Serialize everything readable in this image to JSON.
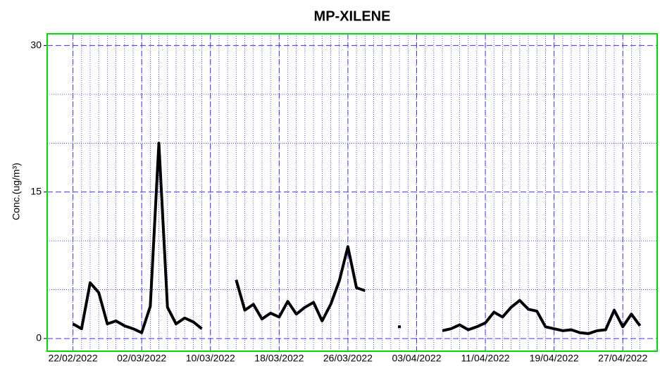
{
  "chart_data": {
    "type": "line",
    "title": "MP-XILENE",
    "y_label": "Conc.(ug/m³)",
    "x": [
      "22/02/2022",
      "23/02/2022",
      "24/02/2022",
      "25/02/2022",
      "26/02/2022",
      "27/02/2022",
      "28/02/2022",
      "01/03/2022",
      "02/03/2022",
      "03/03/2022",
      "04/03/2022",
      "05/03/2022",
      "06/03/2022",
      "07/03/2022",
      "08/03/2022",
      "09/03/2022",
      "10/03/2022",
      "11/03/2022",
      "12/03/2022",
      "13/03/2022",
      "14/03/2022",
      "15/03/2022",
      "16/03/2022",
      "17/03/2022",
      "18/03/2022",
      "19/03/2022",
      "20/03/2022",
      "21/03/2022",
      "22/03/2022",
      "23/03/2022",
      "24/03/2022",
      "25/03/2022",
      "26/03/2022",
      "27/03/2022",
      "28/03/2022",
      "29/03/2022",
      "30/03/2022",
      "31/03/2022",
      "01/04/2022",
      "02/04/2022",
      "03/04/2022",
      "04/04/2022",
      "05/04/2022",
      "06/04/2022",
      "07/04/2022",
      "08/04/2022",
      "09/04/2022",
      "10/04/2022",
      "11/04/2022",
      "12/04/2022",
      "13/04/2022",
      "14/04/2022",
      "15/04/2022",
      "16/04/2022",
      "17/04/2022",
      "18/04/2022",
      "19/04/2022",
      "20/04/2022",
      "21/04/2022",
      "22/04/2022",
      "23/04/2022",
      "24/04/2022",
      "25/04/2022",
      "26/04/2022",
      "27/04/2022",
      "28/04/2022",
      "29/04/2022"
    ],
    "series": [
      {
        "name": "MP-XILENE",
        "color": "#000000",
        "values": [
          1.5,
          1.0,
          5.7,
          4.7,
          1.5,
          1.8,
          1.3,
          1.0,
          0.6,
          3.3,
          20.0,
          3.2,
          1.5,
          2.1,
          1.7,
          1.0,
          null,
          null,
          null,
          6.0,
          2.9,
          3.5,
          2.0,
          2.6,
          2.2,
          3.8,
          2.5,
          3.2,
          3.7,
          1.8,
          3.5,
          5.9,
          9.4,
          5.2,
          4.9,
          null,
          null,
          null,
          1.2,
          null,
          null,
          null,
          null,
          0.8,
          1.0,
          1.4,
          0.9,
          1.2,
          1.6,
          2.7,
          2.2,
          3.2,
          3.9,
          3.0,
          2.8,
          1.2,
          1.0,
          0.8,
          0.9,
          0.6,
          0.5,
          0.8,
          0.9,
          2.9,
          1.2,
          2.5,
          1.3
        ]
      }
    ],
    "xlim": [
      "19/02/2022",
      "01/05/2022"
    ],
    "xticks": [
      "22/02/2022",
      "02/03/2022",
      "10/03/2022",
      "18/03/2022",
      "26/03/2022",
      "03/04/2022",
      "11/04/2022",
      "19/04/2022",
      "27/04/2022"
    ],
    "ylim": [
      -1.3,
      31.2
    ],
    "yticks": [
      0,
      15,
      30
    ],
    "yminor": [
      5,
      10,
      20,
      25
    ],
    "grid": true,
    "frame_color": "#00dd00",
    "grid_color": "#3333ff"
  }
}
